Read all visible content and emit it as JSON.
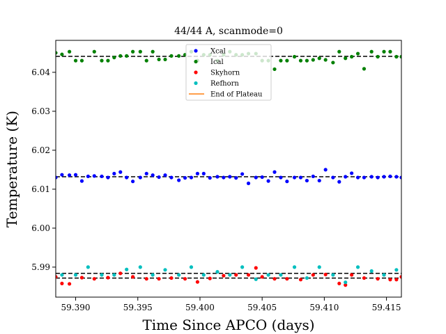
{
  "chart_data": {
    "type": "scatter",
    "title": "44/44 A, scanmode=0",
    "xlabel": "Time Since APCO (days)",
    "ylabel": "Temperature (K)",
    "xlim": [
      59.3884,
      59.4162
    ],
    "ylim": [
      5.9823,
      6.0482
    ],
    "xticks": [
      59.39,
      59.395,
      59.4,
      59.405,
      59.41,
      59.415
    ],
    "xtick_labels": [
      "59.390",
      "59.395",
      "59.400",
      "59.405",
      "59.410",
      "59.415"
    ],
    "yticks": [
      5.99,
      6.0,
      6.01,
      6.02,
      6.03,
      6.04
    ],
    "ytick_labels": [
      "5.99",
      "6.00",
      "6.01",
      "6.02",
      "6.03",
      "6.04"
    ],
    "grid": false,
    "legend_position": "top-center",
    "series": [
      {
        "name": "Xcal",
        "color": "#0000ff",
        "kind": "points",
        "x": [
          59.3884,
          59.3895,
          59.3905,
          59.3915,
          59.3926,
          59.3936,
          59.3946,
          59.3957,
          59.3967,
          59.3977,
          59.3988,
          59.3998,
          59.4008,
          59.4019,
          59.4029,
          59.4039,
          59.405,
          59.406,
          59.407,
          59.4081,
          59.4091,
          59.4101,
          59.4112,
          59.4122,
          59.4132,
          59.4143,
          59.4153,
          59.4162,
          59.3889,
          59.39,
          59.391,
          59.3921,
          59.3931,
          59.3941,
          59.3952,
          59.3962,
          59.3972,
          59.3983,
          59.3993,
          59.4003,
          59.4014,
          59.4024,
          59.4034,
          59.4045,
          59.4055,
          59.4065,
          59.4076,
          59.4086,
          59.4096,
          59.4107,
          59.4117,
          59.4127,
          59.4138,
          59.4148,
          59.4158
        ],
        "y": [
          6.013,
          6.0136,
          6.0121,
          6.0134,
          6.013,
          6.0144,
          6.012,
          6.014,
          6.0131,
          6.013,
          6.0129,
          6.014,
          6.0129,
          6.013,
          6.0129,
          6.0115,
          6.0131,
          6.0144,
          6.012,
          6.013,
          6.0133,
          6.015,
          6.0119,
          6.0141,
          6.013,
          6.013,
          6.0133,
          6.013,
          6.0137,
          6.0137,
          6.0133,
          6.0133,
          6.014,
          6.013,
          6.013,
          6.0136,
          6.0136,
          6.0123,
          6.013,
          6.014,
          6.0132,
          6.0132,
          6.0139,
          6.013,
          6.0121,
          6.013,
          6.013,
          6.0122,
          6.0122,
          6.013,
          6.0132,
          6.013,
          6.0132,
          6.0132,
          6.0132
        ]
      },
      {
        "name": "Ical",
        "color": "#008000",
        "kind": "points",
        "x": [
          59.3884,
          59.3889,
          59.3895,
          59.39,
          59.3905,
          59.3915,
          59.3921,
          59.3926,
          59.3931,
          59.3936,
          59.3941,
          59.3946,
          59.3952,
          59.3957,
          59.3962,
          59.3967,
          59.3972,
          59.3977,
          59.3983,
          59.3988,
          59.3993,
          59.3998,
          59.4003,
          59.4008,
          59.4014,
          59.4019,
          59.4024,
          59.4029,
          59.4034,
          59.4039,
          59.4045,
          59.405,
          59.4055,
          59.406,
          59.4065,
          59.407,
          59.4076,
          59.4081,
          59.4086,
          59.4091,
          59.4096,
          59.4101,
          59.4107,
          59.4112,
          59.4117,
          59.4122,
          59.4127,
          59.4132,
          59.4138,
          59.4143,
          59.4148,
          59.4153,
          59.4158,
          59.4162
        ],
        "y": [
          6.045,
          6.0446,
          6.0453,
          6.043,
          6.043,
          6.0453,
          6.043,
          6.043,
          6.0438,
          6.0442,
          6.0442,
          6.0453,
          6.0453,
          6.043,
          6.0453,
          6.0433,
          6.0433,
          6.0442,
          6.0442,
          6.0445,
          6.0453,
          6.043,
          6.0445,
          6.0445,
          6.043,
          6.0445,
          6.0453,
          6.0445,
          6.0445,
          6.0448,
          6.0448,
          6.043,
          6.043,
          6.0408,
          6.043,
          6.043,
          6.044,
          6.043,
          6.043,
          6.0432,
          6.0436,
          6.0432,
          6.0425,
          6.0453,
          6.0436,
          6.044,
          6.0448,
          6.0409,
          6.0453,
          6.044,
          6.0453,
          6.0453,
          6.044,
          6.044
        ]
      },
      {
        "name": "Skyhorn",
        "color": "#ff0000",
        "kind": "points",
        "x": [
          59.3884,
          59.3889,
          59.3895,
          59.3905,
          59.3915,
          59.3926,
          59.3936,
          59.3946,
          59.3957,
          59.3967,
          59.3977,
          59.3988,
          59.3998,
          59.4008,
          59.4019,
          59.4029,
          59.4039,
          59.4045,
          59.405,
          59.406,
          59.407,
          59.4081,
          59.4091,
          59.4101,
          59.4112,
          59.4117,
          59.4122,
          59.4132,
          59.4143,
          59.4153,
          59.4158,
          59.4162
        ],
        "y": [
          5.9875,
          5.9858,
          5.9857,
          5.9873,
          5.987,
          5.9873,
          5.9884,
          5.9875,
          5.987,
          5.987,
          5.9872,
          5.987,
          5.9862,
          5.9871,
          5.9878,
          5.988,
          5.988,
          5.9898,
          5.9875,
          5.987,
          5.987,
          5.9868,
          5.988,
          5.9881,
          5.9858,
          5.9854,
          5.988,
          5.9872,
          5.987,
          5.9868,
          5.9868,
          5.9875
        ]
      },
      {
        "name": "Refhorn",
        "color": "#00bfbf",
        "kind": "points",
        "x": [
          59.3889,
          59.39,
          59.391,
          59.3921,
          59.3931,
          59.3941,
          59.3952,
          59.3962,
          59.3972,
          59.3983,
          59.3993,
          59.4003,
          59.4014,
          59.4024,
          59.4034,
          59.4045,
          59.4055,
          59.4065,
          59.4076,
          59.4086,
          59.4096,
          59.4107,
          59.4117,
          59.4127,
          59.4138,
          59.4148,
          59.4158
        ],
        "y": [
          5.988,
          5.988,
          5.99,
          5.988,
          5.988,
          5.9894,
          5.99,
          5.988,
          5.9893,
          5.988,
          5.99,
          5.988,
          5.9888,
          5.988,
          5.99,
          5.9869,
          5.988,
          5.988,
          5.99,
          5.9872,
          5.99,
          5.988,
          5.9861,
          5.99,
          5.989,
          5.988,
          5.9893
        ]
      },
      {
        "name": "End of Plateau",
        "color": "#ff7f0e",
        "kind": "line",
        "x": [],
        "y": []
      }
    ],
    "reference_lines": [
      {
        "y": 6.0441,
        "color": "#000000",
        "style": "dashed"
      },
      {
        "y": 6.0132,
        "color": "#000000",
        "style": "dashed"
      },
      {
        "y": 5.9884,
        "color": "#000000",
        "style": "dashed"
      },
      {
        "y": 5.9872,
        "color": "#000000",
        "style": "dashed"
      }
    ]
  }
}
